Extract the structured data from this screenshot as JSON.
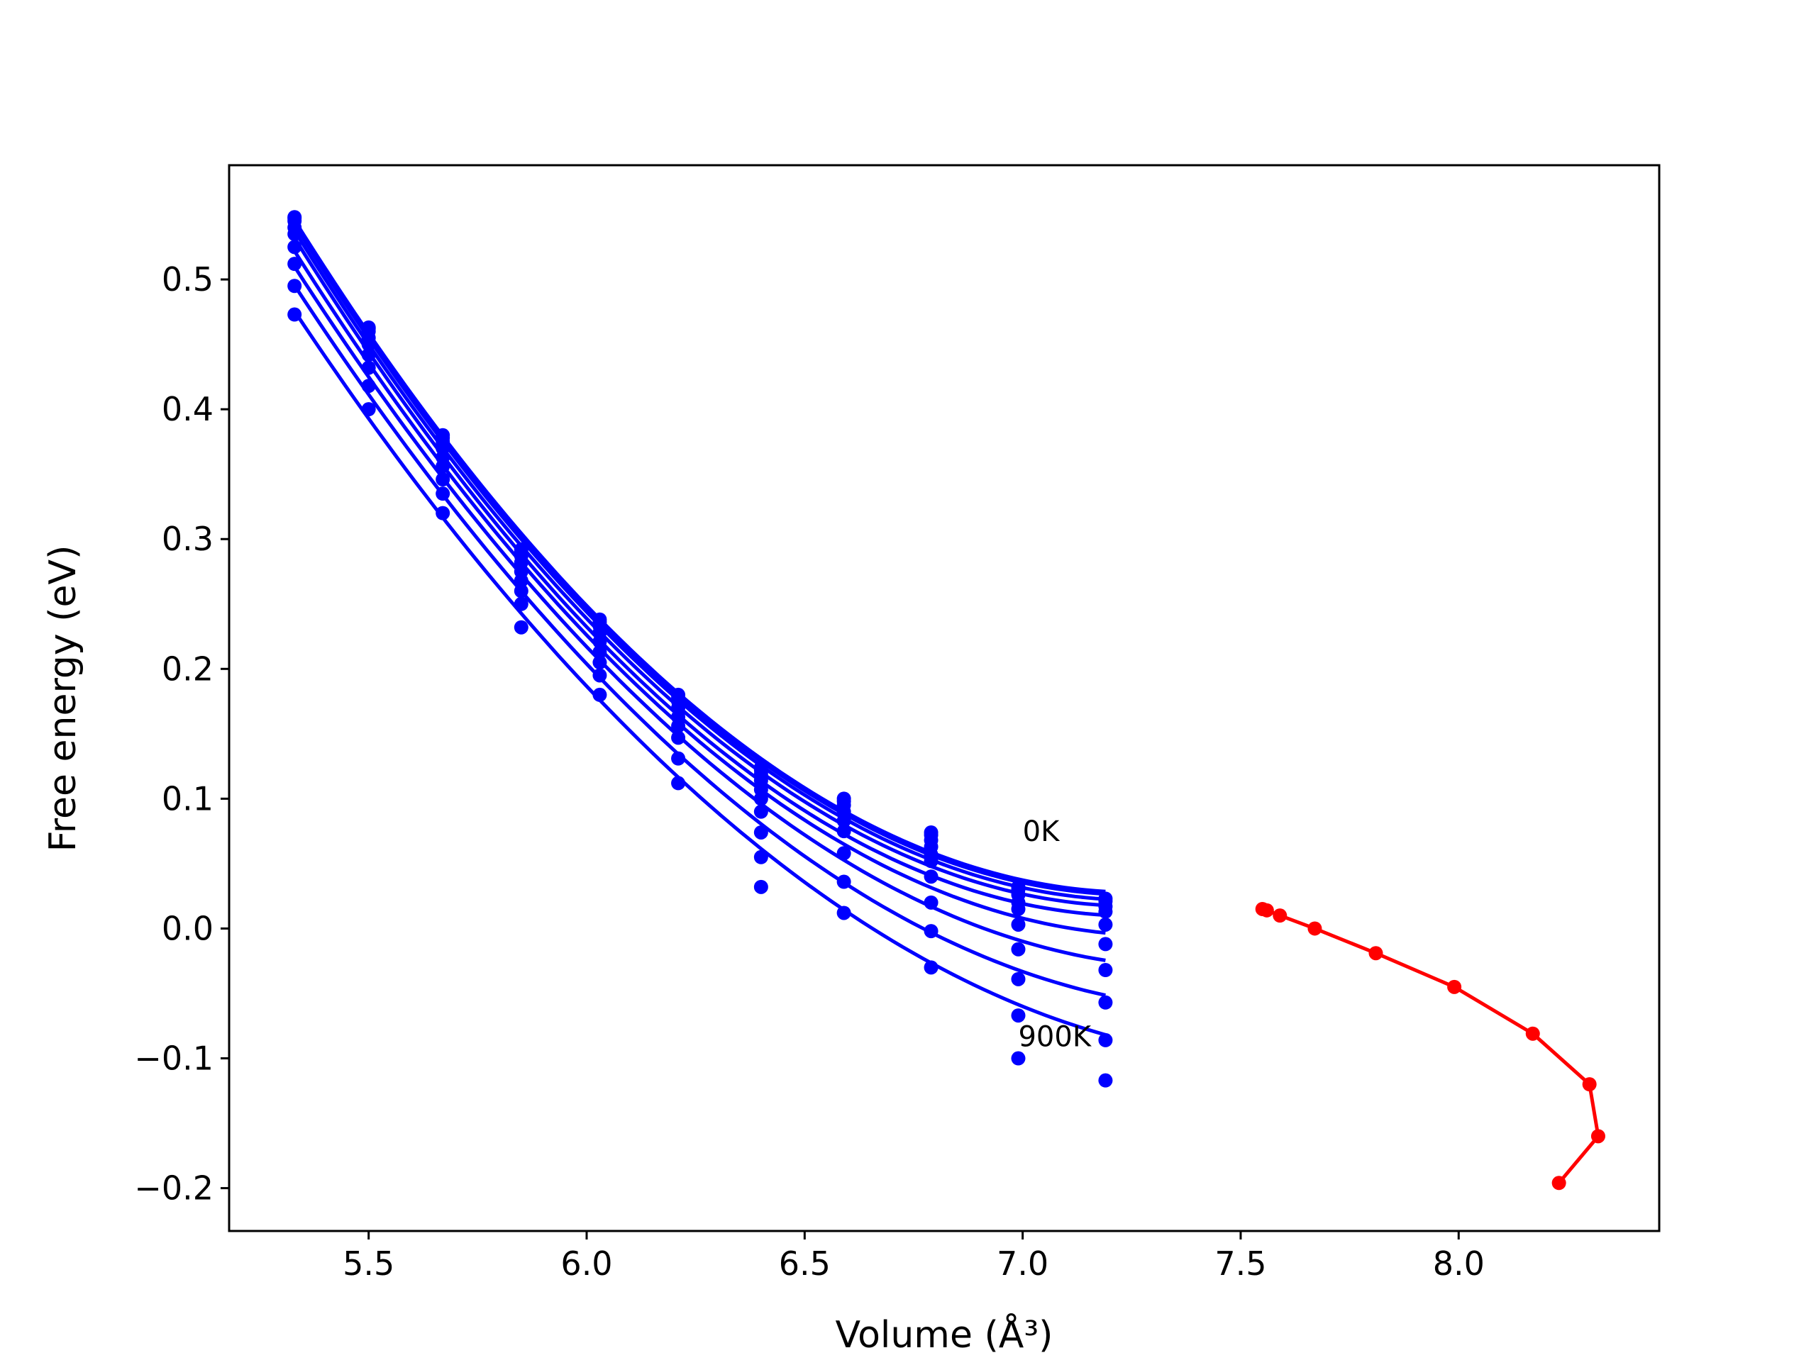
{
  "chart_data": {
    "type": "line",
    "title": "",
    "xlabel": "Volume (Å³)",
    "ylabel": "Free energy (eV)",
    "xlim": [
      5.18,
      8.46
    ],
    "ylim": [
      -0.233,
      0.588
    ],
    "x_ticks": [
      5.5,
      6.0,
      6.5,
      7.0,
      7.5,
      8.0
    ],
    "x_tick_labels": [
      "5.5",
      "6.0",
      "6.5",
      "7.0",
      "7.5",
      "8.0"
    ],
    "y_ticks": [
      -0.2,
      -0.1,
      0.0,
      0.1,
      0.2,
      0.3,
      0.4,
      0.5
    ],
    "y_tick_labels": [
      "−0.2",
      "−0.1",
      "0.0",
      "0.1",
      "0.2",
      "0.3",
      "0.4",
      "0.5"
    ],
    "grid": false,
    "legend": "none",
    "colors": {
      "isotherms": "#0000ff",
      "minimum_path": "#ff0000"
    },
    "annotations": [
      {
        "text": "0K",
        "x": 7.0,
        "y": 0.075
      },
      {
        "text": "900K",
        "x": 6.99,
        "y": -0.083
      }
    ],
    "x": [
      5.33,
      5.5,
      5.67,
      5.85,
      6.03,
      6.21,
      6.4,
      6.59,
      6.79,
      6.99,
      7.19
    ],
    "isotherms": [
      {
        "values": [
          0.548,
          0.463,
          0.38,
          0.292,
          0.238,
          0.18,
          0.124,
          0.1,
          0.074,
          0.032,
          0.023
        ]
      },
      {
        "values": [
          0.547,
          0.462,
          0.378,
          0.29,
          0.236,
          0.178,
          0.122,
          0.098,
          0.072,
          0.03,
          0.021
        ]
      },
      {
        "values": [
          0.545,
          0.46,
          0.375,
          0.287,
          0.233,
          0.175,
          0.119,
          0.095,
          0.068,
          0.026,
          0.017
        ]
      },
      {
        "values": [
          0.54,
          0.455,
          0.37,
          0.282,
          0.228,
          0.17,
          0.114,
          0.09,
          0.063,
          0.02,
          0.013
        ]
      },
      {
        "values": [
          0.535,
          0.45,
          0.363,
          0.275,
          0.221,
          0.163,
          0.107,
          0.083,
          0.057,
          0.015,
          0.003
        ]
      },
      {
        "values": [
          0.525,
          0.442,
          0.356,
          0.268,
          0.213,
          0.156,
          0.1,
          0.075,
          0.052,
          0.003,
          -0.012
        ]
      },
      {
        "values": [
          0.512,
          0.432,
          0.346,
          0.26,
          0.205,
          0.147,
          0.09,
          0.058,
          0.04,
          -0.016,
          -0.032
        ]
      },
      {
        "values": [
          0.495,
          0.418,
          0.335,
          0.25,
          0.195,
          0.131,
          0.074,
          0.036,
          0.02,
          -0.039,
          -0.057
        ]
      },
      {
        "values": [
          0.473,
          0.4,
          0.32,
          0.232,
          0.18,
          0.112,
          0.055,
          0.012,
          -0.002,
          -0.067,
          -0.086
        ]
      },
      {
        "values": [
          null,
          null,
          null,
          null,
          null,
          null,
          0.032,
          null,
          -0.03,
          -0.1,
          -0.117
        ]
      }
    ],
    "minimum_path": {
      "x": [
        7.55,
        7.56,
        7.59,
        7.67,
        7.81,
        7.99,
        8.17,
        8.3,
        8.32,
        8.23
      ],
      "y": [
        0.015,
        0.014,
        0.01,
        0.0,
        -0.019,
        -0.045,
        -0.081,
        -0.12,
        -0.16,
        -0.196
      ]
    }
  }
}
